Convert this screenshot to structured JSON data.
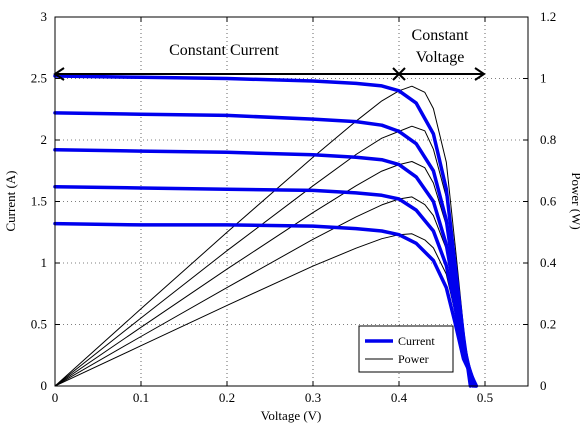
{
  "chart_data": {
    "type": "line",
    "xlabel": "Voltage (V)",
    "ylabel": "Current (A)",
    "y2label": "Power (W)",
    "xlim": [
      0,
      0.55
    ],
    "ylim": [
      0,
      3
    ],
    "y2lim": [
      0,
      1.2
    ],
    "xticks": [
      "0",
      "0.1",
      "0.2",
      "0.3",
      "0.4",
      "0.5"
    ],
    "yticks": [
      "0",
      "0.5",
      "1",
      "1.5",
      "2",
      "2.5",
      "3"
    ],
    "y2ticks": [
      "0",
      "0.2",
      "0.4",
      "0.6",
      "0.8",
      "1",
      "1.2"
    ],
    "grid": true,
    "legend_position": "bottom-right",
    "colors": {
      "current": "#0000ee",
      "power": "#000000"
    },
    "regions": [
      {
        "label": "Constant Current",
        "x_start": 0,
        "x_end": 0.4
      },
      {
        "label": "Constant Voltage",
        "label_lines": [
          "Constant",
          "Voltage"
        ],
        "x_start": 0.4,
        "x_end": 0.5
      }
    ],
    "series": [
      {
        "name": "Current",
        "axis": "left",
        "curves": [
          [
            [
              0,
              2.52
            ],
            [
              0.1,
              2.51
            ],
            [
              0.2,
              2.5
            ],
            [
              0.3,
              2.48
            ],
            [
              0.35,
              2.46
            ],
            [
              0.38,
              2.44
            ],
            [
              0.4,
              2.4
            ],
            [
              0.42,
              2.3
            ],
            [
              0.44,
              2.05
            ],
            [
              0.455,
              1.6
            ],
            [
              0.465,
              1.0
            ],
            [
              0.475,
              0.4
            ],
            [
              0.483,
              0
            ]
          ],
          [
            [
              0,
              2.22
            ],
            [
              0.1,
              2.21
            ],
            [
              0.2,
              2.2
            ],
            [
              0.3,
              2.17
            ],
            [
              0.35,
              2.15
            ],
            [
              0.38,
              2.12
            ],
            [
              0.4,
              2.07
            ],
            [
              0.42,
              1.97
            ],
            [
              0.44,
              1.75
            ],
            [
              0.455,
              1.35
            ],
            [
              0.465,
              0.85
            ],
            [
              0.475,
              0.35
            ],
            [
              0.486,
              0
            ]
          ],
          [
            [
              0,
              1.92
            ],
            [
              0.1,
              1.91
            ],
            [
              0.2,
              1.9
            ],
            [
              0.3,
              1.88
            ],
            [
              0.35,
              1.86
            ],
            [
              0.38,
              1.84
            ],
            [
              0.4,
              1.8
            ],
            [
              0.42,
              1.7
            ],
            [
              0.44,
              1.5
            ],
            [
              0.455,
              1.15
            ],
            [
              0.465,
              0.75
            ],
            [
              0.475,
              0.3
            ],
            [
              0.488,
              0
            ]
          ],
          [
            [
              0,
              1.62
            ],
            [
              0.1,
              1.61
            ],
            [
              0.2,
              1.6
            ],
            [
              0.3,
              1.59
            ],
            [
              0.35,
              1.57
            ],
            [
              0.38,
              1.55
            ],
            [
              0.4,
              1.52
            ],
            [
              0.42,
              1.43
            ],
            [
              0.44,
              1.26
            ],
            [
              0.455,
              0.98
            ],
            [
              0.465,
              0.65
            ],
            [
              0.475,
              0.27
            ],
            [
              0.489,
              0
            ]
          ],
          [
            [
              0,
              1.32
            ],
            [
              0.1,
              1.31
            ],
            [
              0.2,
              1.31
            ],
            [
              0.3,
              1.3
            ],
            [
              0.35,
              1.28
            ],
            [
              0.38,
              1.26
            ],
            [
              0.4,
              1.23
            ],
            [
              0.42,
              1.16
            ],
            [
              0.44,
              1.02
            ],
            [
              0.455,
              0.8
            ],
            [
              0.465,
              0.52
            ],
            [
              0.475,
              0.22
            ],
            [
              0.49,
              0
            ]
          ]
        ]
      },
      {
        "name": "Power",
        "axis": "right",
        "curves": [
          [
            [
              0,
              0
            ],
            [
              0.1,
              0.251
            ],
            [
              0.2,
              0.5
            ],
            [
              0.3,
              0.744
            ],
            [
              0.35,
              0.861
            ],
            [
              0.38,
              0.927
            ],
            [
              0.4,
              0.96
            ],
            [
              0.415,
              0.975
            ],
            [
              0.43,
              0.955
            ],
            [
              0.44,
              0.902
            ],
            [
              0.455,
              0.728
            ],
            [
              0.465,
              0.465
            ],
            [
              0.475,
              0.19
            ],
            [
              0.483,
              0
            ]
          ],
          [
            [
              0,
              0
            ],
            [
              0.1,
              0.221
            ],
            [
              0.2,
              0.44
            ],
            [
              0.3,
              0.651
            ],
            [
              0.35,
              0.753
            ],
            [
              0.38,
              0.806
            ],
            [
              0.4,
              0.828
            ],
            [
              0.415,
              0.845
            ],
            [
              0.43,
              0.83
            ],
            [
              0.44,
              0.77
            ],
            [
              0.455,
              0.614
            ],
            [
              0.465,
              0.395
            ],
            [
              0.475,
              0.166
            ],
            [
              0.486,
              0
            ]
          ],
          [
            [
              0,
              0
            ],
            [
              0.1,
              0.191
            ],
            [
              0.2,
              0.38
            ],
            [
              0.3,
              0.564
            ],
            [
              0.35,
              0.651
            ],
            [
              0.38,
              0.699
            ],
            [
              0.4,
              0.72
            ],
            [
              0.415,
              0.73
            ],
            [
              0.43,
              0.71
            ],
            [
              0.44,
              0.66
            ],
            [
              0.455,
              0.523
            ],
            [
              0.465,
              0.349
            ],
            [
              0.475,
              0.143
            ],
            [
              0.488,
              0
            ]
          ],
          [
            [
              0,
              0
            ],
            [
              0.1,
              0.161
            ],
            [
              0.2,
              0.32
            ],
            [
              0.3,
              0.477
            ],
            [
              0.35,
              0.55
            ],
            [
              0.38,
              0.589
            ],
            [
              0.4,
              0.608
            ],
            [
              0.415,
              0.615
            ],
            [
              0.43,
              0.59
            ],
            [
              0.44,
              0.554
            ],
            [
              0.455,
              0.446
            ],
            [
              0.465,
              0.302
            ],
            [
              0.475,
              0.128
            ],
            [
              0.489,
              0
            ]
          ],
          [
            [
              0,
              0
            ],
            [
              0.1,
              0.131
            ],
            [
              0.2,
              0.262
            ],
            [
              0.3,
              0.39
            ],
            [
              0.35,
              0.448
            ],
            [
              0.38,
              0.479
            ],
            [
              0.4,
              0.492
            ],
            [
              0.415,
              0.495
            ],
            [
              0.43,
              0.475
            ],
            [
              0.44,
              0.449
            ],
            [
              0.455,
              0.364
            ],
            [
              0.465,
              0.242
            ],
            [
              0.475,
              0.105
            ],
            [
              0.49,
              0
            ]
          ]
        ]
      }
    ]
  }
}
